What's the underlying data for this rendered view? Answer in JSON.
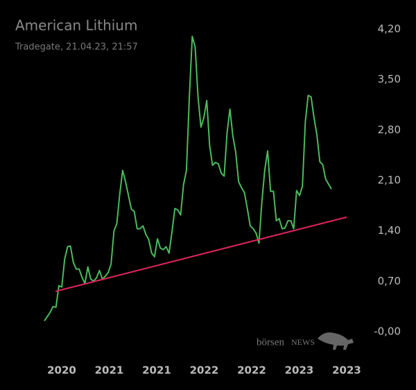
{
  "chart_data": {
    "type": "line",
    "title": "American Lithium",
    "subtitle": "Tradegate, 21.04.23, 21:57",
    "watermark": [
      "börsen",
      "NEWS"
    ],
    "x_labels": [
      "2020",
      "2021",
      "2021",
      "2022",
      "2022",
      "2023",
      "2023"
    ],
    "series": [
      {
        "color": "#4cbb5c",
        "values": [
          0.15,
          0.21,
          0.27,
          0.35,
          0.34,
          0.64,
          0.62,
          1.01,
          1.18,
          1.19,
          0.96,
          0.87,
          0.87,
          0.75,
          0.67,
          0.9,
          0.73,
          0.7,
          0.75,
          0.85,
          0.73,
          0.77,
          0.82,
          0.94,
          1.4,
          1.5,
          1.91,
          2.24,
          2.08,
          1.89,
          1.7,
          1.67,
          1.43,
          1.43,
          1.47,
          1.35,
          1.28,
          1.09,
          1.04,
          1.29,
          1.16,
          1.14,
          1.18,
          1.09,
          1.38,
          1.71,
          1.69,
          1.62,
          2.04,
          2.24,
          3.26,
          4.1,
          3.95,
          3.26,
          2.84,
          2.97,
          3.21,
          2.58,
          2.31,
          2.35,
          2.33,
          2.2,
          2.16,
          2.76,
          3.09,
          2.72,
          2.49,
          2.08,
          2.0,
          1.93,
          1.71,
          1.47,
          1.43,
          1.37,
          1.23,
          1.79,
          2.24,
          2.51,
          1.95,
          1.95,
          1.54,
          1.57,
          1.43,
          1.44,
          1.54,
          1.54,
          1.43,
          1.96,
          1.89,
          2.02,
          2.92,
          3.28,
          3.26,
          2.97,
          2.73,
          2.36,
          2.32,
          2.12,
          2.05,
          1.98
        ]
      },
      {
        "color": "#e0245e",
        "values": [
          0.56,
          1.59
        ]
      }
    ],
    "ylim": [
      0,
      4.2
    ],
    "yticks": [
      {
        "value": 4.2,
        "label": "4,20"
      },
      {
        "value": 3.5,
        "label": "3,50"
      },
      {
        "value": 2.8,
        "label": "2,80"
      },
      {
        "value": 2.1,
        "label": "2,10"
      },
      {
        "value": 1.4,
        "label": "1,40"
      },
      {
        "value": 0.7,
        "label": "0,70"
      },
      {
        "value": 0,
        "label": "-0,00"
      }
    ]
  }
}
